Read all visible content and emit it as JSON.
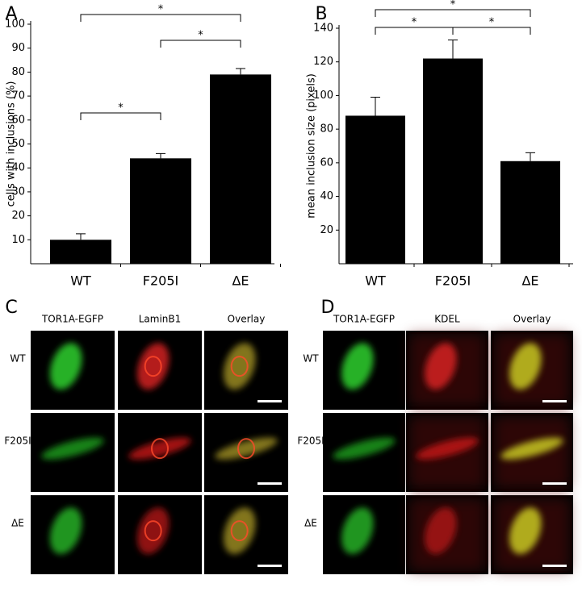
{
  "chart_data": [
    {
      "type": "bar",
      "panel": "A",
      "y_label": "cells with inclusions (%)",
      "categories": [
        "WT",
        "F205I",
        "ΔE"
      ],
      "values": [
        10,
        44,
        79
      ],
      "errors": [
        2.5,
        2,
        2.5
      ],
      "color": "#000000",
      "ylim": [
        0,
        100
      ],
      "yticks": [
        10,
        20,
        30,
        40,
        50,
        60,
        70,
        80,
        90,
        100
      ],
      "annotations": [
        {
          "between": [
            "WT",
            "F205I"
          ],
          "label": "*"
        },
        {
          "between": [
            "F205I",
            "ΔE"
          ],
          "label": "*"
        },
        {
          "between": [
            "WT",
            "ΔE"
          ],
          "label": "*"
        }
      ]
    },
    {
      "type": "bar",
      "panel": "B",
      "y_label": "mean inclusion size (pixels)",
      "categories": [
        "WT",
        "F205I",
        "ΔE"
      ],
      "values": [
        88,
        122,
        61
      ],
      "errors": [
        11,
        11,
        5
      ],
      "color": "#000000",
      "ylim": [
        0,
        140
      ],
      "yticks": [
        20,
        40,
        60,
        80,
        100,
        120,
        140
      ],
      "annotations": [
        {
          "between": [
            "WT",
            "F205I"
          ],
          "label": "*"
        },
        {
          "between": [
            "F205I",
            "ΔE"
          ],
          "label": "*"
        },
        {
          "between": [
            "WT",
            "ΔE"
          ],
          "label": "*"
        }
      ]
    }
  ],
  "panels": [
    {
      "label": "C",
      "columns": [
        "TOR1A-EGFP",
        "LaminB1",
        "Overlay"
      ],
      "rows": [
        "WT",
        "F205I",
        "ΔE"
      ]
    },
    {
      "label": "D",
      "columns": [
        "TOR1A-EGFP",
        "KDEL",
        "Overlay"
      ],
      "rows": [
        "WT",
        "F205I",
        "ΔE"
      ]
    }
  ]
}
